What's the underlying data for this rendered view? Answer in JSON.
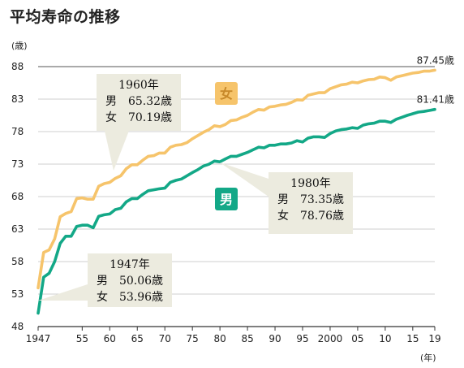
{
  "title": "平均寿命の推移",
  "chart_data": {
    "type": "line",
    "title": "平均寿命の推移",
    "ylabel": "(歳)",
    "xlabel": "(年)",
    "ylim": [
      48,
      88
    ],
    "xlim": [
      1947,
      2019
    ],
    "y_ticks": [
      48,
      53,
      58,
      63,
      68,
      73,
      78,
      83,
      88
    ],
    "x_ticks": [
      {
        "year": 1947,
        "label": "1947"
      },
      {
        "year": 1955,
        "label": "55"
      },
      {
        "year": 1960,
        "label": "60"
      },
      {
        "year": 1965,
        "label": "65"
      },
      {
        "year": 1970,
        "label": "70"
      },
      {
        "year": 1975,
        "label": "75"
      },
      {
        "year": 1980,
        "label": "80"
      },
      {
        "year": 1985,
        "label": "85"
      },
      {
        "year": 1990,
        "label": "90"
      },
      {
        "year": 1995,
        "label": "95"
      },
      {
        "year": 2000,
        "label": "2000"
      },
      {
        "year": 2005,
        "label": "05"
      },
      {
        "year": 2010,
        "label": "10"
      },
      {
        "year": 2015,
        "label": "15"
      },
      {
        "year": 2019,
        "label": "19"
      }
    ],
    "grid": "horizontal",
    "series": [
      {
        "name": "女",
        "color": "#f6c46b",
        "label_color": "#c8892a",
        "end_label": "87.45歳",
        "x": [
          1947,
          1948,
          1949,
          1950,
          1951,
          1952,
          1953,
          1954,
          1955,
          1956,
          1957,
          1958,
          1959,
          1960,
          1961,
          1962,
          1963,
          1964,
          1965,
          1966,
          1967,
          1968,
          1969,
          1970,
          1971,
          1972,
          1973,
          1974,
          1975,
          1976,
          1977,
          1978,
          1979,
          1980,
          1981,
          1982,
          1983,
          1984,
          1985,
          1986,
          1987,
          1988,
          1989,
          1990,
          1991,
          1992,
          1993,
          1994,
          1995,
          1996,
          1997,
          1998,
          1999,
          2000,
          2001,
          2002,
          2003,
          2004,
          2005,
          2006,
          2007,
          2008,
          2009,
          2010,
          2011,
          2012,
          2013,
          2014,
          2015,
          2016,
          2017,
          2018,
          2019
        ],
        "y": [
          53.96,
          59.4,
          59.8,
          61.5,
          64.9,
          65.4,
          65.7,
          67.7,
          67.8,
          67.6,
          67.6,
          69.6,
          70.0,
          70.19,
          70.8,
          71.2,
          72.3,
          72.9,
          72.9,
          73.6,
          74.2,
          74.3,
          74.7,
          74.7,
          75.6,
          75.9,
          76.0,
          76.3,
          76.9,
          77.4,
          77.9,
          78.3,
          78.9,
          78.76,
          79.1,
          79.7,
          79.8,
          80.2,
          80.5,
          81.0,
          81.4,
          81.3,
          81.8,
          81.9,
          82.1,
          82.2,
          82.5,
          82.9,
          82.85,
          83.6,
          83.8,
          84.0,
          83.99,
          84.6,
          84.9,
          85.2,
          85.3,
          85.6,
          85.5,
          85.8,
          86.0,
          86.05,
          86.4,
          86.3,
          85.9,
          86.4,
          86.6,
          86.8,
          87.0,
          87.1,
          87.3,
          87.3,
          87.45
        ]
      },
      {
        "name": "男",
        "color": "#13a887",
        "label_color": "#ffffff",
        "end_label": "81.41歳",
        "x": [
          1947,
          1948,
          1949,
          1950,
          1951,
          1952,
          1953,
          1954,
          1955,
          1956,
          1957,
          1958,
          1959,
          1960,
          1961,
          1962,
          1963,
          1964,
          1965,
          1966,
          1967,
          1968,
          1969,
          1970,
          1971,
          1972,
          1973,
          1974,
          1975,
          1976,
          1977,
          1978,
          1979,
          1980,
          1981,
          1982,
          1983,
          1984,
          1985,
          1986,
          1987,
          1988,
          1989,
          1990,
          1991,
          1992,
          1993,
          1994,
          1995,
          1996,
          1997,
          1998,
          1999,
          2000,
          2001,
          2002,
          2003,
          2004,
          2005,
          2006,
          2007,
          2008,
          2009,
          2010,
          2011,
          2012,
          2013,
          2014,
          2015,
          2016,
          2017,
          2018,
          2019
        ],
        "y": [
          50.06,
          55.6,
          56.2,
          58.0,
          60.8,
          61.9,
          61.9,
          63.4,
          63.6,
          63.6,
          63.2,
          64.98,
          65.2,
          65.32,
          66.0,
          66.2,
          67.2,
          67.7,
          67.7,
          68.35,
          68.9,
          69.05,
          69.2,
          69.3,
          70.2,
          70.5,
          70.7,
          71.2,
          71.7,
          72.15,
          72.7,
          72.97,
          73.46,
          73.35,
          73.8,
          74.2,
          74.2,
          74.5,
          74.8,
          75.2,
          75.6,
          75.5,
          75.9,
          75.9,
          76.1,
          76.1,
          76.25,
          76.6,
          76.4,
          77.0,
          77.2,
          77.2,
          77.1,
          77.7,
          78.1,
          78.3,
          78.4,
          78.6,
          78.5,
          79.0,
          79.2,
          79.3,
          79.6,
          79.6,
          79.4,
          79.9,
          80.2,
          80.5,
          80.75,
          81.0,
          81.1,
          81.25,
          81.41
        ]
      }
    ],
    "annotations": [
      {
        "year": 1947,
        "lines": [
          "1947年",
          "男　50.06歳",
          "女　53.96歳"
        ]
      },
      {
        "year": 1960,
        "lines": [
          "1960年",
          "男　65.32歳",
          "女　70.19歳"
        ]
      },
      {
        "year": 1980,
        "lines": [
          "1980年",
          "男　73.35歳",
          "女　78.76歳"
        ]
      }
    ]
  }
}
